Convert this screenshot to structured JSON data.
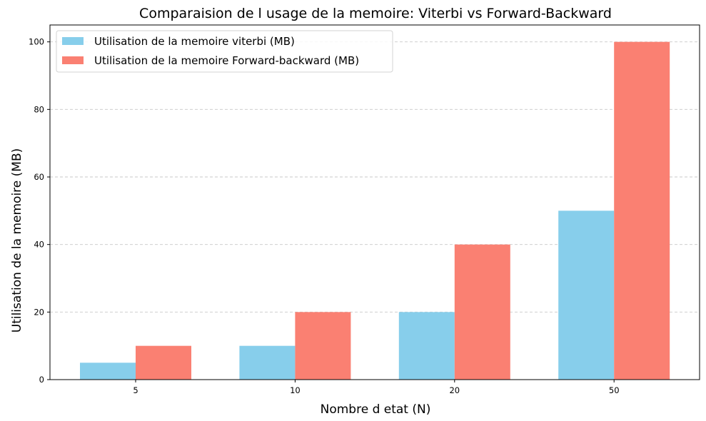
{
  "chart_data": {
    "type": "bar",
    "title": "Comparaision de l usage de la memoire: Viterbi vs Forward-Backward",
    "xlabel": "Nombre d etat (N)",
    "ylabel": "Utilisation de la memoire (MB)",
    "categories": [
      "5",
      "10",
      "20",
      "50"
    ],
    "series": [
      {
        "name": "Utilisation de la memoire viterbi (MB)",
        "values": [
          5,
          10,
          20,
          50
        ],
        "color": "#87ceeb"
      },
      {
        "name": "Utilisation de la memoire Forward-backward (MB)",
        "values": [
          10,
          20,
          40,
          100
        ],
        "color": "#fa8072"
      }
    ],
    "ylim": [
      0,
      105
    ],
    "yticks": [
      0,
      20,
      40,
      60,
      80,
      100
    ],
    "grid": {
      "axis": "y",
      "style": "dashed"
    },
    "legend": {
      "placement": "top-left"
    }
  }
}
